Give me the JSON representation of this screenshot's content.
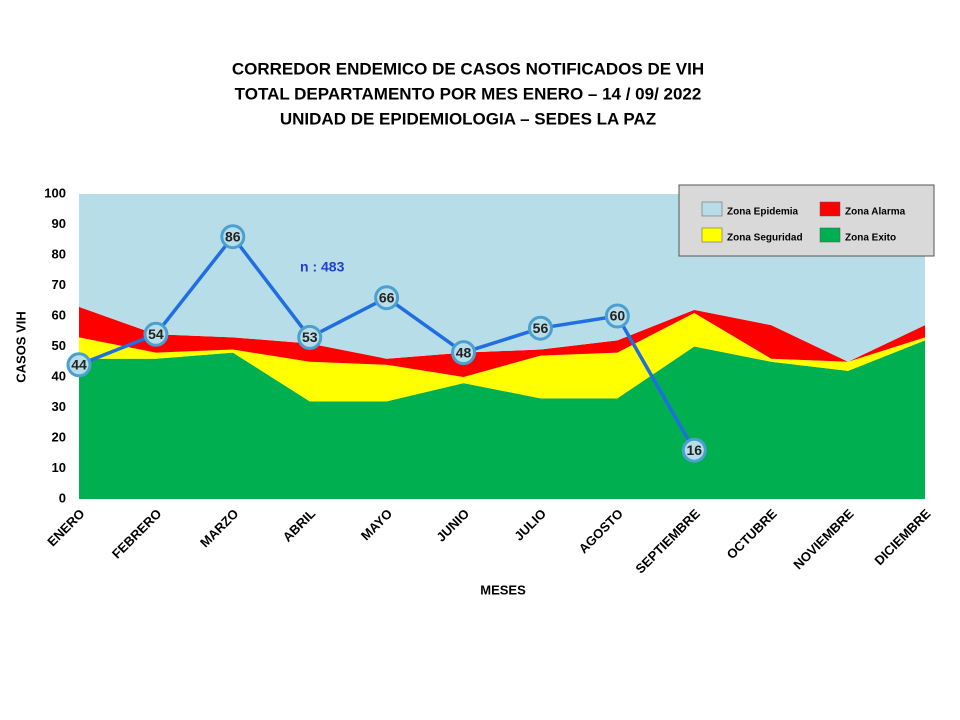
{
  "chart_data": {
    "type": "area",
    "stacked": true,
    "title": [
      "CORREDOR ENDEMICO  DE CASOS NOTIFICADOS  DE VIH",
      "TOTAL DEPARTAMENTO  POR MES ENERO – 14 / 09/ 2022",
      "UNIDAD  DE EPIDEMIOLOGIA  – SEDES LA PAZ"
    ],
    "x_label": "MESES",
    "y_label": "CASOS VIH",
    "annotation": "n : 483",
    "categories": [
      "ENERO",
      "FEBRERO",
      "MARZO",
      "ABRIL",
      "MAYO",
      "JUNIO",
      "JULIO",
      "AGOSTO",
      "SEPTIEMBRE",
      "OCTUBRE",
      "NOVIEMBRE",
      "DICIEMBRE"
    ],
    "series": [
      {
        "name": "Zona Exito",
        "color": "#00b050",
        "values": [
          46,
          46,
          48,
          32,
          32,
          38,
          33,
          33,
          50,
          45,
          42,
          52
        ]
      },
      {
        "name": "Zona Seguridad",
        "color": "#ffff00",
        "values": [
          7,
          2,
          1,
          13,
          12,
          2,
          14,
          15,
          11,
          1,
          3,
          1
        ]
      },
      {
        "name": "Zona Alarma",
        "color": "#ff0000",
        "values": [
          10,
          6,
          4,
          6,
          2,
          8,
          2,
          4,
          1,
          11,
          0,
          4
        ]
      },
      {
        "name": "Zona Epidemia",
        "color": "#b7dde8",
        "values": [
          37,
          46,
          47,
          49,
          54,
          52,
          51,
          48,
          38,
          43,
          55,
          43
        ]
      },
      {
        "type": "line",
        "color": "#1f6fe0",
        "values": [
          44,
          54,
          86,
          53,
          66,
          48,
          56,
          60,
          16,
          null,
          null,
          null
        ]
      }
    ],
    "ylim": [
      0,
      100
    ],
    "yticks": [
      0,
      10,
      20,
      30,
      40,
      50,
      60,
      70,
      80,
      90,
      100
    ],
    "legend": "upper right"
  }
}
